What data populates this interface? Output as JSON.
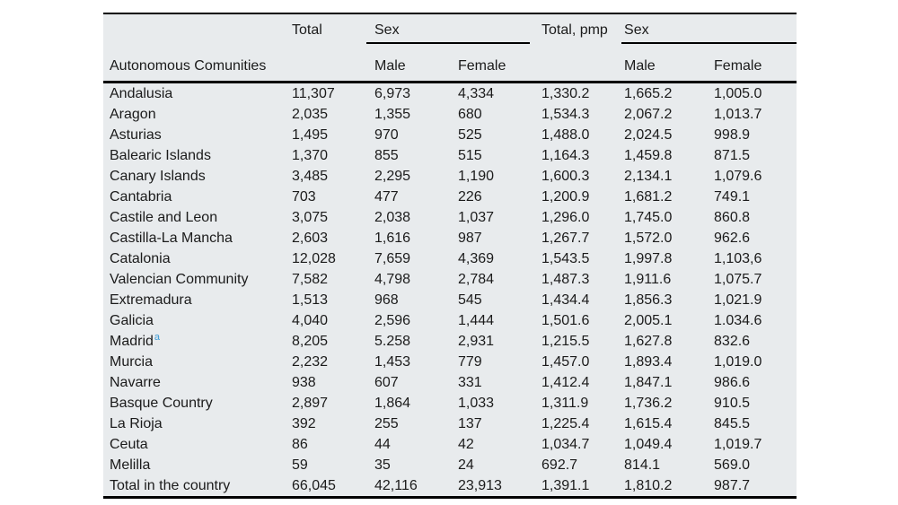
{
  "page": {
    "background": "#ffffff"
  },
  "table": {
    "colors": {
      "background": "#e8ebed",
      "text": "#1b1b1b",
      "rule": "#000000",
      "footnote_marker": "#3d9bd5"
    },
    "header": {
      "row_label": "Autonomous Comunities",
      "groups": {
        "total": "Total",
        "sex1": "Sex",
        "total_pmp": "Total, pmp",
        "sex2": "Sex"
      },
      "sub": {
        "male1": "Male",
        "female1": "Female",
        "male2": "Male",
        "female2": "Female"
      }
    },
    "rows": [
      {
        "name": "Andalusia",
        "sup": "",
        "values": [
          "11,307",
          "6,973",
          "4,334",
          "1,330.2",
          "1,665.2",
          "1,005.0"
        ]
      },
      {
        "name": "Aragon",
        "sup": "",
        "values": [
          "2,035",
          "1,355",
          "680",
          "1,534.3",
          "2,067.2",
          "1,013.7"
        ]
      },
      {
        "name": "Asturias",
        "sup": "",
        "values": [
          "1,495",
          "970",
          "525",
          "1,488.0",
          "2,024.5",
          "998.9"
        ]
      },
      {
        "name": "Balearic Islands",
        "sup": "",
        "values": [
          "1,370",
          "855",
          "515",
          "1,164.3",
          "1,459.8",
          "871.5"
        ]
      },
      {
        "name": "Canary Islands",
        "sup": "",
        "values": [
          "3,485",
          "2,295",
          "1,190",
          "1,600.3",
          "2,134.1",
          "1,079.6"
        ]
      },
      {
        "name": "Cantabria",
        "sup": "",
        "values": [
          "703",
          "477",
          "226",
          "1,200.9",
          "1,681.2",
          "749.1"
        ]
      },
      {
        "name": "Castile and Leon",
        "sup": "",
        "values": [
          "3,075",
          "2,038",
          "1,037",
          "1,296.0",
          "1,745.0",
          "860.8"
        ]
      },
      {
        "name": "Castilla-La Mancha",
        "sup": "",
        "values": [
          "2,603",
          "1,616",
          "987",
          "1,267.7",
          "1,572.0",
          "962.6"
        ]
      },
      {
        "name": "Catalonia",
        "sup": "",
        "values": [
          "12,028",
          "7,659",
          "4,369",
          "1,543.5",
          "1,997.8",
          "1,103,6"
        ]
      },
      {
        "name": "Valencian Community",
        "sup": "",
        "values": [
          "7,582",
          "4,798",
          "2,784",
          "1,487.3",
          "1,911.6",
          "1,075.7"
        ]
      },
      {
        "name": "Extremadura",
        "sup": "",
        "values": [
          "1,513",
          "968",
          "545",
          "1,434.4",
          "1,856.3",
          "1,021.9"
        ]
      },
      {
        "name": "Galicia",
        "sup": "",
        "values": [
          "4,040",
          "2,596",
          "1,444",
          "1,501.6",
          "2,005.1",
          "1.034.6"
        ]
      },
      {
        "name": "Madrid",
        "sup": "a",
        "values": [
          "8,205",
          "5.258",
          "2,931",
          "1,215.5",
          "1,627.8",
          "832.6"
        ]
      },
      {
        "name": "Murcia",
        "sup": "",
        "values": [
          "2,232",
          "1,453",
          "779",
          "1,457.0",
          "1,893.4",
          "1,019.0"
        ]
      },
      {
        "name": "Navarre",
        "sup": "",
        "values": [
          "938",
          "607",
          "331",
          "1,412.4",
          "1,847.1",
          "986.6"
        ]
      },
      {
        "name": "Basque Country",
        "sup": "",
        "values": [
          "2,897",
          "1,864",
          "1,033",
          "1,311.9",
          "1,736.2",
          "910.5"
        ]
      },
      {
        "name": "La Rioja",
        "sup": "",
        "values": [
          "392",
          "255",
          "137",
          "1,225.4",
          "1,615.4",
          "845.5"
        ]
      },
      {
        "name": "Ceuta",
        "sup": "",
        "values": [
          "86",
          "44",
          "42",
          "1,034.7",
          "1,049.4",
          "1,019.7"
        ]
      },
      {
        "name": "Melilla",
        "sup": "",
        "values": [
          "59",
          "35",
          "24",
          "692.7",
          "814.1",
          "569.0"
        ]
      },
      {
        "name": "Total in the country",
        "sup": "",
        "values": [
          "66,045",
          "42,116",
          "23,913",
          "1,391.1",
          "1,810.2",
          "987.7"
        ]
      }
    ]
  }
}
